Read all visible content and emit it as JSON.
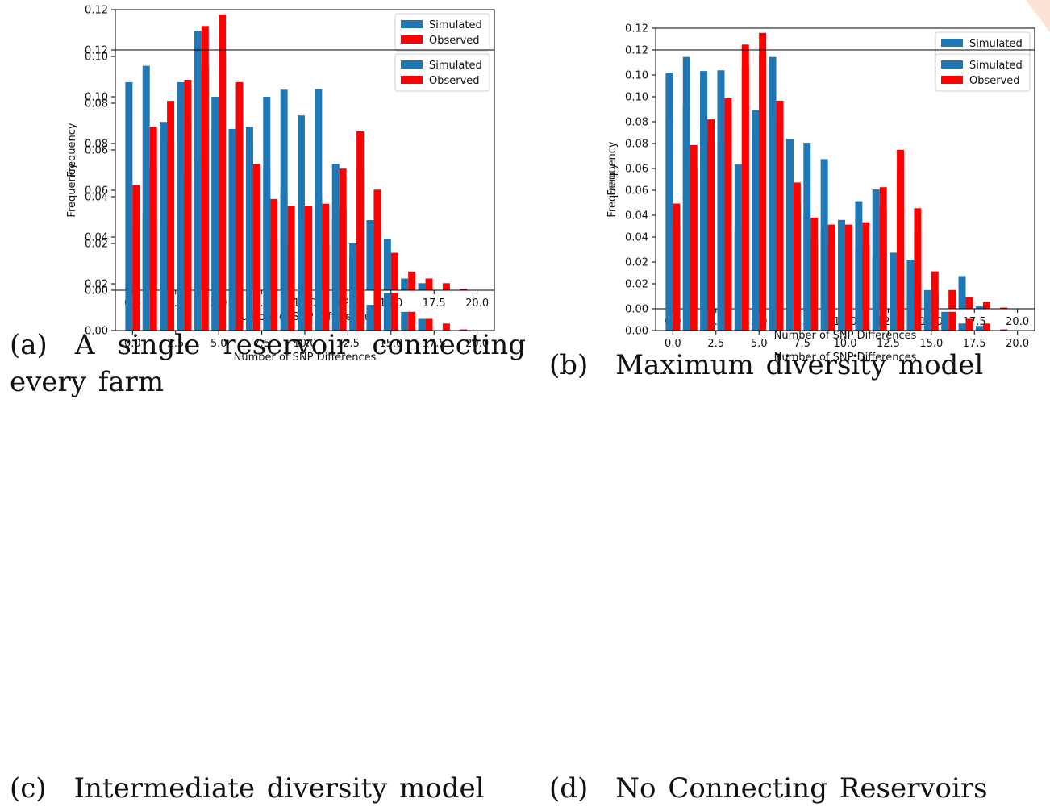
{
  "colors": {
    "simulated": "#1f77b4",
    "observed": "#ff0000"
  },
  "chart_data": [
    {
      "type": "bar",
      "caption_label": "(a)",
      "caption_text": "A single reservoir connecting every farm",
      "xlabel": "Number of SNP Differences",
      "ylabel": "Frequency",
      "xlim": [
        -1,
        21
      ],
      "ylim": [
        0,
        0.12
      ],
      "xticks": [
        "0.0",
        "2.5",
        "5.0",
        "7.5",
        "10.0",
        "12.5",
        "15.0",
        "17.5",
        "20.0"
      ],
      "yticks": [
        "0.00",
        "0.02",
        "0.04",
        "0.06",
        "0.08",
        "0.10",
        "0.12"
      ],
      "legend_position": "top-right",
      "x": [
        0,
        1,
        2,
        3,
        4,
        5,
        6,
        7,
        8,
        9,
        10,
        11,
        12,
        13,
        14,
        15,
        16,
        17,
        18,
        19
      ],
      "series": [
        {
          "name": "Simulated",
          "values": [
            0.089,
            0.096,
            0.072,
            0.089,
            0.111,
            0.069,
            0.069,
            0.062,
            0.052,
            0.042,
            0.032,
            0.086,
            0.054,
            0.02,
            0.03,
            0.022,
            0.005,
            0.003,
            0.0,
            0.0
          ]
        },
        {
          "name": "Observed",
          "values": [
            0.045,
            0.07,
            0.081,
            0.09,
            0.113,
            0.118,
            0.089,
            0.054,
            0.039,
            0.036,
            0.036,
            0.037,
            0.052,
            0.068,
            0.043,
            0.016,
            0.008,
            0.005,
            0.003,
            0.0005
          ]
        }
      ]
    },
    {
      "type": "bar",
      "caption_label": "(b)",
      "caption_text": "Maximum diversity model",
      "xlabel": "Number of SNP Differences",
      "ylabel": "Frequency",
      "xlim": [
        -1,
        21
      ],
      "ylim": [
        0,
        0.12
      ],
      "xticks": [
        "0.0",
        "2.5",
        "5.0",
        "7.5",
        "10.0",
        "12.5",
        "15.0",
        "17.5",
        "20.0"
      ],
      "yticks": [
        "0.00",
        "0.02",
        "0.04",
        "0.06",
        "0.08",
        "0.10",
        "0.12"
      ],
      "legend_position": "top-right",
      "x": [
        0,
        1,
        2,
        3,
        4,
        5,
        6,
        7,
        8,
        9,
        10,
        11,
        12,
        13,
        14,
        15,
        16,
        17,
        18,
        19
      ],
      "series": [
        {
          "name": "Simulated",
          "values": [
            0.101,
            0.087,
            0.098,
            0.102,
            0.035,
            0.085,
            0.083,
            0.072,
            0.071,
            0.064,
            0.038,
            0.046,
            0.051,
            0.024,
            0.021,
            0.008,
            0.0,
            0.014,
            0.001,
            0.0
          ]
        },
        {
          "name": "Observed",
          "values": [
            0.045,
            0.07,
            0.081,
            0.09,
            0.113,
            0.118,
            0.089,
            0.054,
            0.039,
            0.036,
            0.036,
            0.037,
            0.052,
            0.068,
            0.043,
            0.016,
            0.008,
            0.005,
            0.003,
            0.0005
          ]
        }
      ]
    },
    {
      "type": "bar",
      "caption_label": "(c)",
      "caption_text": "Intermediate diversity model",
      "xlabel": "Number of SNP Differences",
      "ylabel": "Frequency",
      "xlim": [
        -1,
        21
      ],
      "ylim": [
        0,
        0.12
      ],
      "xticks": [
        "0.0",
        "2.5",
        "5.0",
        "7.5",
        "10.0",
        "12.5",
        "15.0",
        "17.5",
        "20.0"
      ],
      "yticks": [
        "0.00",
        "0.02",
        "0.04",
        "0.06",
        "0.08",
        "0.10",
        "0.12"
      ],
      "legend_position": "top-right",
      "x": [
        0,
        1,
        2,
        3,
        4,
        5,
        6,
        7,
        8,
        9,
        10,
        11,
        12,
        13,
        14,
        15,
        16,
        17,
        18,
        19
      ],
      "series": [
        {
          "name": "Simulated",
          "values": [
            0.019,
            0.05,
            0.045,
            0.066,
            0.074,
            0.1,
            0.085,
            0.087,
            0.1,
            0.103,
            0.092,
            0.058,
            0.048,
            0.032,
            0.011,
            0.016,
            0.008,
            0.005,
            0.0,
            0.0
          ]
        },
        {
          "name": "Observed",
          "values": [
            0.045,
            0.07,
            0.081,
            0.09,
            0.113,
            0.118,
            0.089,
            0.054,
            0.039,
            0.036,
            0.036,
            0.037,
            0.052,
            0.068,
            0.043,
            0.016,
            0.008,
            0.005,
            0.003,
            0.0005
          ]
        }
      ]
    },
    {
      "type": "bar",
      "caption_label": "(d)",
      "caption_text": "No Connecting Reservoirs",
      "xlabel": "Number of SNP Differences",
      "ylabel": "Frequency",
      "xlim": [
        -1,
        21
      ],
      "ylim": [
        0,
        0.12
      ],
      "xticks": [
        "0.0",
        "2.5",
        "5.0",
        "7.5",
        "10.0",
        "12.5",
        "15.0",
        "17.5",
        "20.0"
      ],
      "yticks": [
        "0.00",
        "0.02",
        "0.04",
        "0.06",
        "0.08",
        "0.10",
        "0.12"
      ],
      "legend_position": "top-right",
      "x": [
        0,
        1,
        2,
        3,
        4,
        5,
        6,
        7,
        8,
        9,
        10,
        11,
        12,
        13,
        14,
        15,
        16,
        17,
        18,
        19
      ],
      "series": [
        {
          "name": "Simulated",
          "values": [
            0.09,
            0.117,
            0.111,
            0.081,
            0.071,
            0.084,
            0.117,
            0.082,
            0.049,
            0.043,
            0.038,
            0.035,
            0.032,
            0.015,
            0.016,
            0.01,
            0.008,
            0.003,
            0.002,
            0.0
          ]
        },
        {
          "name": "Observed",
          "values": [
            0.045,
            0.07,
            0.081,
            0.09,
            0.113,
            0.118,
            0.089,
            0.054,
            0.039,
            0.036,
            0.036,
            0.037,
            0.052,
            0.068,
            0.043,
            0.016,
            0.008,
            0.005,
            0.003,
            0.0005
          ]
        }
      ]
    }
  ]
}
